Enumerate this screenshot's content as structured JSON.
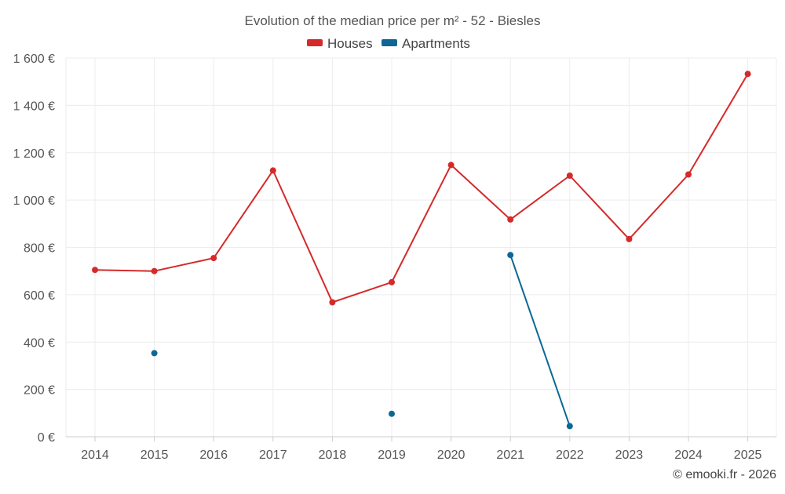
{
  "chart_data": {
    "type": "line",
    "title": "Evolution of the median price per m² - 52 - Biesles",
    "categories": [
      "2014",
      "2015",
      "2016",
      "2017",
      "2018",
      "2019",
      "2020",
      "2021",
      "2022",
      "2023",
      "2024",
      "2025"
    ],
    "ylim": [
      0,
      1600
    ],
    "yticks": [
      0,
      200,
      400,
      600,
      800,
      1000,
      1200,
      1400,
      1600
    ],
    "ytick_labels": [
      "0 €",
      "200 €",
      "400 €",
      "600 €",
      "800 €",
      "1 000 €",
      "1 200 €",
      "1 400 €",
      "1 600 €"
    ],
    "grid": true,
    "legend_position": "top-center",
    "series": [
      {
        "name": "Houses",
        "color": "#d42a2a",
        "values": [
          705,
          700,
          755,
          1125,
          568,
          653,
          1148,
          918,
          1103,
          835,
          1108,
          1533
        ]
      },
      {
        "name": "Apartments",
        "color": "#0d6796",
        "values": [
          null,
          353,
          null,
          null,
          null,
          97,
          null,
          768,
          45,
          null,
          null,
          null
        ]
      }
    ]
  },
  "credit": "© emooki.fr - 2026"
}
